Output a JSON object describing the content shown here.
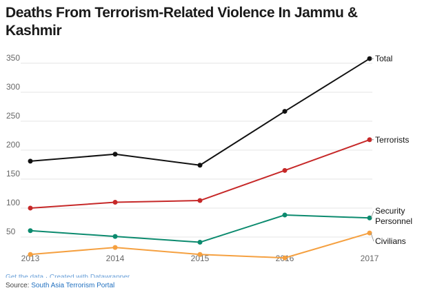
{
  "header": {
    "title": "Deaths From Terrorism-Related Violence In Jammu & Kashmir"
  },
  "footer": {
    "credits": "Get the data · Created with Datawrapper",
    "source_label": "Source:",
    "source_link": "South Asia Terrorism Portal"
  },
  "chart_data": {
    "type": "line",
    "title": "Deaths From Terrorism-Related Violence In Jammu & Kashmir",
    "xlabel": "",
    "ylabel": "",
    "x": [
      "2013",
      "2014",
      "2015",
      "2016",
      "2017"
    ],
    "y_ticks": [
      50,
      100,
      150,
      200,
      250,
      300,
      350
    ],
    "ylim": [
      25,
      370
    ],
    "grid": true,
    "legend": "labels at line ends (right)",
    "series": [
      {
        "name": "Total",
        "values": [
          181,
          193,
          174,
          267,
          358
        ],
        "color": "#111111"
      },
      {
        "name": "Terrorists",
        "values": [
          100,
          110,
          113,
          165,
          218
        ],
        "color": "#c62828"
      },
      {
        "name": "Security Personnel",
        "values": [
          61,
          51,
          41,
          88,
          83
        ],
        "color": "#0b8a6e"
      },
      {
        "name": "Civilians",
        "values": [
          20,
          32,
          20,
          14,
          57
        ],
        "color": "#f5a040"
      }
    ]
  }
}
